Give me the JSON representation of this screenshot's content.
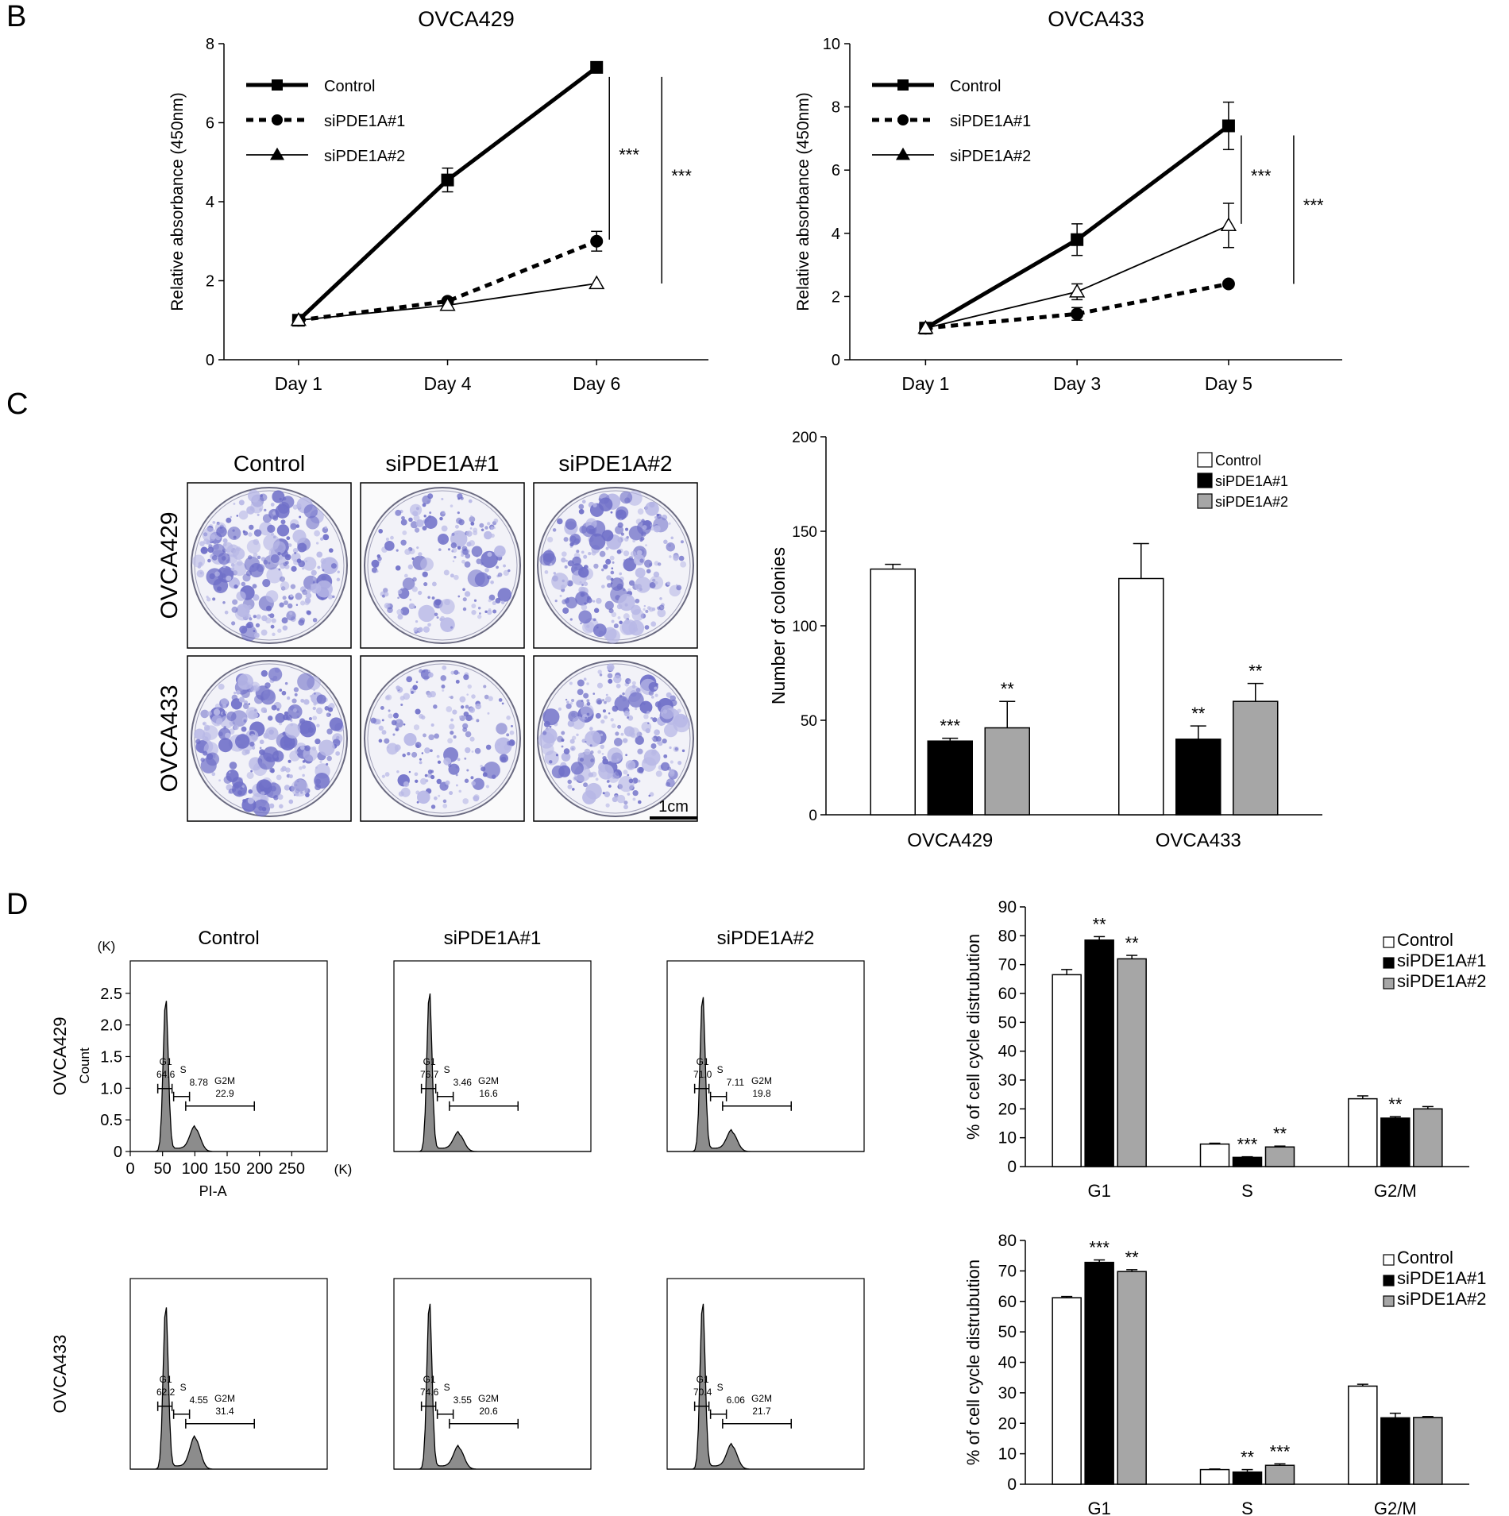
{
  "panels": {
    "b": "B",
    "c": "C",
    "d": "D"
  },
  "colors": {
    "ink": "#000000",
    "gray_bar": "#a6a6a6",
    "stain": "#6f6fc8",
    "stain_light": "#b8b8e6",
    "hist_fill": "#8c8c8c"
  },
  "series_labels": [
    "Control",
    "siPDE1A#1",
    "siPDE1A#2"
  ],
  "chart_data": [
    {
      "id": "growth-ovca429",
      "type": "line",
      "title": "OVCA429",
      "xlabel": "",
      "ylabel": "Relative absorbance (450nm)",
      "categories": [
        "Day 1",
        "Day 4",
        "Day 6"
      ],
      "ylim": [
        0,
        8
      ],
      "yticks": [
        0,
        2,
        4,
        6,
        8
      ],
      "series": [
        {
          "name": "Control",
          "values": [
            1.0,
            4.55,
            7.4
          ],
          "errors": [
            0.05,
            0.3,
            0.08
          ],
          "marker": "square",
          "style": "thick"
        },
        {
          "name": "siPDE1A#1",
          "values": [
            1.0,
            1.48,
            3.0
          ],
          "errors": [
            0.05,
            0.05,
            0.25
          ],
          "marker": "circle",
          "style": "dashed"
        },
        {
          "name": "siPDE1A#2",
          "values": [
            1.0,
            1.38,
            1.93
          ],
          "errors": [
            0.05,
            0.05,
            0.05
          ],
          "marker": "triangle",
          "style": "thin"
        }
      ],
      "significance": [
        "***",
        "***"
      ]
    },
    {
      "id": "growth-ovca433",
      "type": "line",
      "title": "OVCA433",
      "xlabel": "",
      "ylabel": "Relative absorbance (450nm)",
      "categories": [
        "Day 1",
        "Day 3",
        "Day 5"
      ],
      "ylim": [
        0,
        10
      ],
      "yticks": [
        0,
        2,
        4,
        6,
        8,
        10
      ],
      "series": [
        {
          "name": "Control",
          "values": [
            1.0,
            3.8,
            7.4
          ],
          "errors": [
            0.05,
            0.5,
            0.75
          ],
          "marker": "square",
          "style": "thick"
        },
        {
          "name": "siPDE1A#1",
          "values": [
            1.0,
            1.45,
            2.4
          ],
          "errors": [
            0.05,
            0.2,
            0.05
          ],
          "marker": "circle",
          "style": "dashed"
        },
        {
          "name": "siPDE1A#2",
          "values": [
            1.0,
            2.15,
            4.25
          ],
          "errors": [
            0.05,
            0.25,
            0.7
          ],
          "marker": "triangle",
          "style": "thin"
        }
      ],
      "significance": [
        "***",
        "***"
      ]
    },
    {
      "id": "colonies",
      "type": "bar",
      "title": "",
      "xlabel": "",
      "ylabel": "Number of colonies",
      "categories": [
        "OVCA429",
        "OVCA433"
      ],
      "ylim": [
        0,
        200
      ],
      "yticks": [
        0,
        50,
        100,
        150,
        200
      ],
      "series": [
        {
          "name": "Control",
          "values": [
            130,
            125
          ],
          "errors": [
            2.5,
            18.5
          ],
          "sig": [
            "",
            ""
          ]
        },
        {
          "name": "siPDE1A#1",
          "values": [
            39,
            40
          ],
          "errors": [
            1.5,
            7
          ],
          "sig": [
            "***",
            "**"
          ]
        },
        {
          "name": "siPDE1A#2",
          "values": [
            46,
            60
          ],
          "errors": [
            14,
            9.5
          ],
          "sig": [
            "**",
            "**"
          ]
        }
      ]
    },
    {
      "id": "cellcycle-ovca429",
      "type": "bar",
      "title": "",
      "xlabel": "",
      "ylabel": "% of cell cycle distrubution",
      "categories": [
        "G1",
        "S",
        "G2/M"
      ],
      "ylim": [
        0,
        90
      ],
      "yticks": [
        0,
        10,
        20,
        30,
        40,
        50,
        60,
        70,
        80,
        90
      ],
      "series": [
        {
          "name": "Control",
          "values": [
            66.5,
            7.8,
            23.5
          ],
          "errors": [
            1.8,
            0.3,
            1.0
          ],
          "sig": [
            "",
            "",
            ""
          ]
        },
        {
          "name": "siPDE1A#1",
          "values": [
            78.5,
            3.2,
            16.8
          ],
          "errors": [
            1.2,
            0.2,
            0.5
          ],
          "sig": [
            "**",
            "***",
            "**"
          ]
        },
        {
          "name": "siPDE1A#2",
          "values": [
            72.0,
            6.8,
            20.0
          ],
          "errors": [
            1.2,
            0.3,
            0.8
          ],
          "sig": [
            "**",
            "**",
            ""
          ]
        }
      ]
    },
    {
      "id": "cellcycle-ovca433",
      "type": "bar",
      "title": "",
      "xlabel": "",
      "ylabel": "% of cell cycle distrubution",
      "categories": [
        "G1",
        "S",
        "G2/M"
      ],
      "ylim": [
        0,
        80
      ],
      "yticks": [
        0,
        10,
        20,
        30,
        40,
        50,
        60,
        70,
        80
      ],
      "series": [
        {
          "name": "Control",
          "values": [
            61.2,
            4.8,
            32.2
          ],
          "errors": [
            0.4,
            0.2,
            0.6
          ],
          "sig": [
            "",
            "",
            ""
          ]
        },
        {
          "name": "siPDE1A#1",
          "values": [
            72.8,
            4.0,
            21.8
          ],
          "errors": [
            0.8,
            0.8,
            1.5
          ],
          "sig": [
            "***",
            "**",
            ""
          ]
        },
        {
          "name": "siPDE1A#2",
          "values": [
            69.8,
            6.2,
            21.9
          ],
          "errors": [
            0.6,
            0.5,
            0.3
          ],
          "sig": [
            "**",
            "***",
            ""
          ]
        }
      ]
    }
  ],
  "colony_images": {
    "columns": [
      "Control",
      "siPDE1A#1",
      "siPDE1A#2"
    ],
    "rows": [
      "OVCA429",
      "OVCA433"
    ],
    "scale_bar": "1cm",
    "density": [
      [
        0.85,
        0.35,
        0.7
      ],
      [
        0.9,
        0.3,
        0.75
      ]
    ]
  },
  "flow": {
    "columns": [
      "Control",
      "siPDE1A#1",
      "siPDE1A#2"
    ],
    "rows": [
      "OVCA429",
      "OVCA433"
    ],
    "y_unit": "(K)",
    "x_unit": "(K)",
    "ylabel": "Count",
    "xlabel": "PI-A",
    "yticks": [
      "0",
      "0.5",
      "1.0",
      "1.5",
      "2.0",
      "2.5"
    ],
    "xticks": [
      "0",
      "50",
      "100",
      "150",
      "200",
      "250"
    ],
    "gates": [
      [
        {
          "g1": "64.6",
          "s": "8.78",
          "g2m": "22.9",
          "g1_peak": 0.8,
          "g2_peak": 0.12
        },
        {
          "g1": "76.7",
          "s": "3.46",
          "g2m": "16.6",
          "g1_peak": 0.84,
          "g2_peak": 0.09
        },
        {
          "g1": "71.0",
          "s": "7.11",
          "g2m": "19.8",
          "g1_peak": 0.82,
          "g2_peak": 0.1
        }
      ],
      [
        {
          "g1": "62.2",
          "s": "4.55",
          "g2m": "31.4",
          "g1_peak": 0.86,
          "g2_peak": 0.16
        },
        {
          "g1": "74.6",
          "s": "3.55",
          "g2m": "20.6",
          "g1_peak": 0.88,
          "g2_peak": 0.11
        },
        {
          "g1": "70.4",
          "s": "6.06",
          "g2m": "21.7",
          "g1_peak": 0.88,
          "g2_peak": 0.12
        }
      ]
    ],
    "gate_labels": {
      "g1": "G1",
      "s": "S",
      "g2m": "G2M"
    }
  }
}
